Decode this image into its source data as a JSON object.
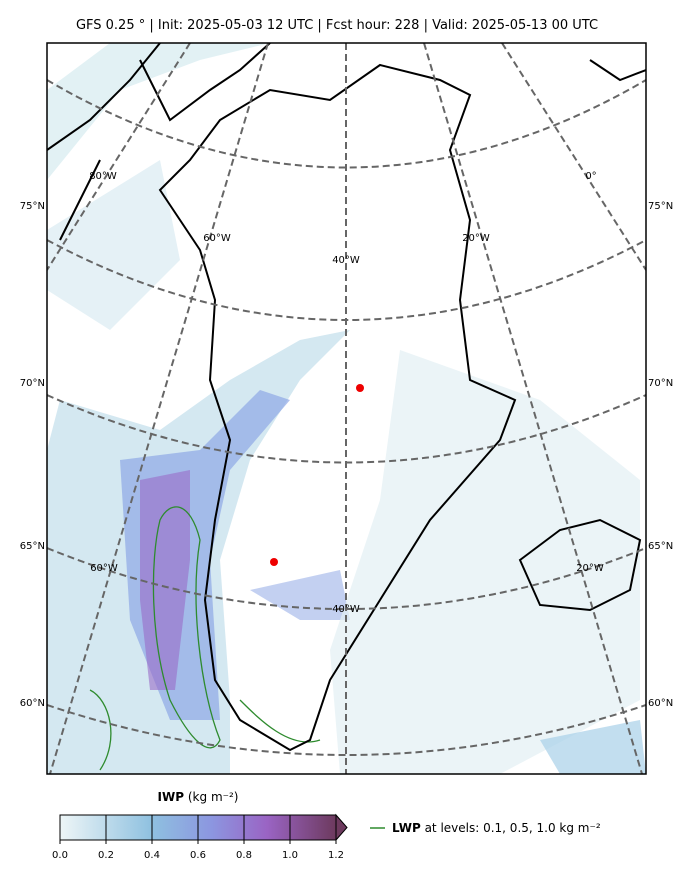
{
  "header": {
    "title": "GFS 0.25 ° | Init: 2025-05-03 12 UTC | Fcst hour: 228 | Valid: 2025-05-13 00 UTC"
  },
  "map": {
    "lat_labels": [
      "75°N",
      "70°N",
      "65°N",
      "60°N"
    ],
    "lon_labels": [
      "80°W",
      "0°",
      "60°W",
      "40°W",
      "20°W",
      "60°W",
      "40°W",
      "20°W"
    ]
  },
  "colorbar": {
    "label": "IWP",
    "unit": "(kg m⁻²)",
    "ticks": [
      "0.0",
      "0.2",
      "0.4",
      "0.6",
      "0.8",
      "1.0",
      "1.2"
    ]
  },
  "legend": {
    "label": "LWP",
    "text": "at levels: 0.1, 0.5, 1.0  kg m⁻²"
  }
}
